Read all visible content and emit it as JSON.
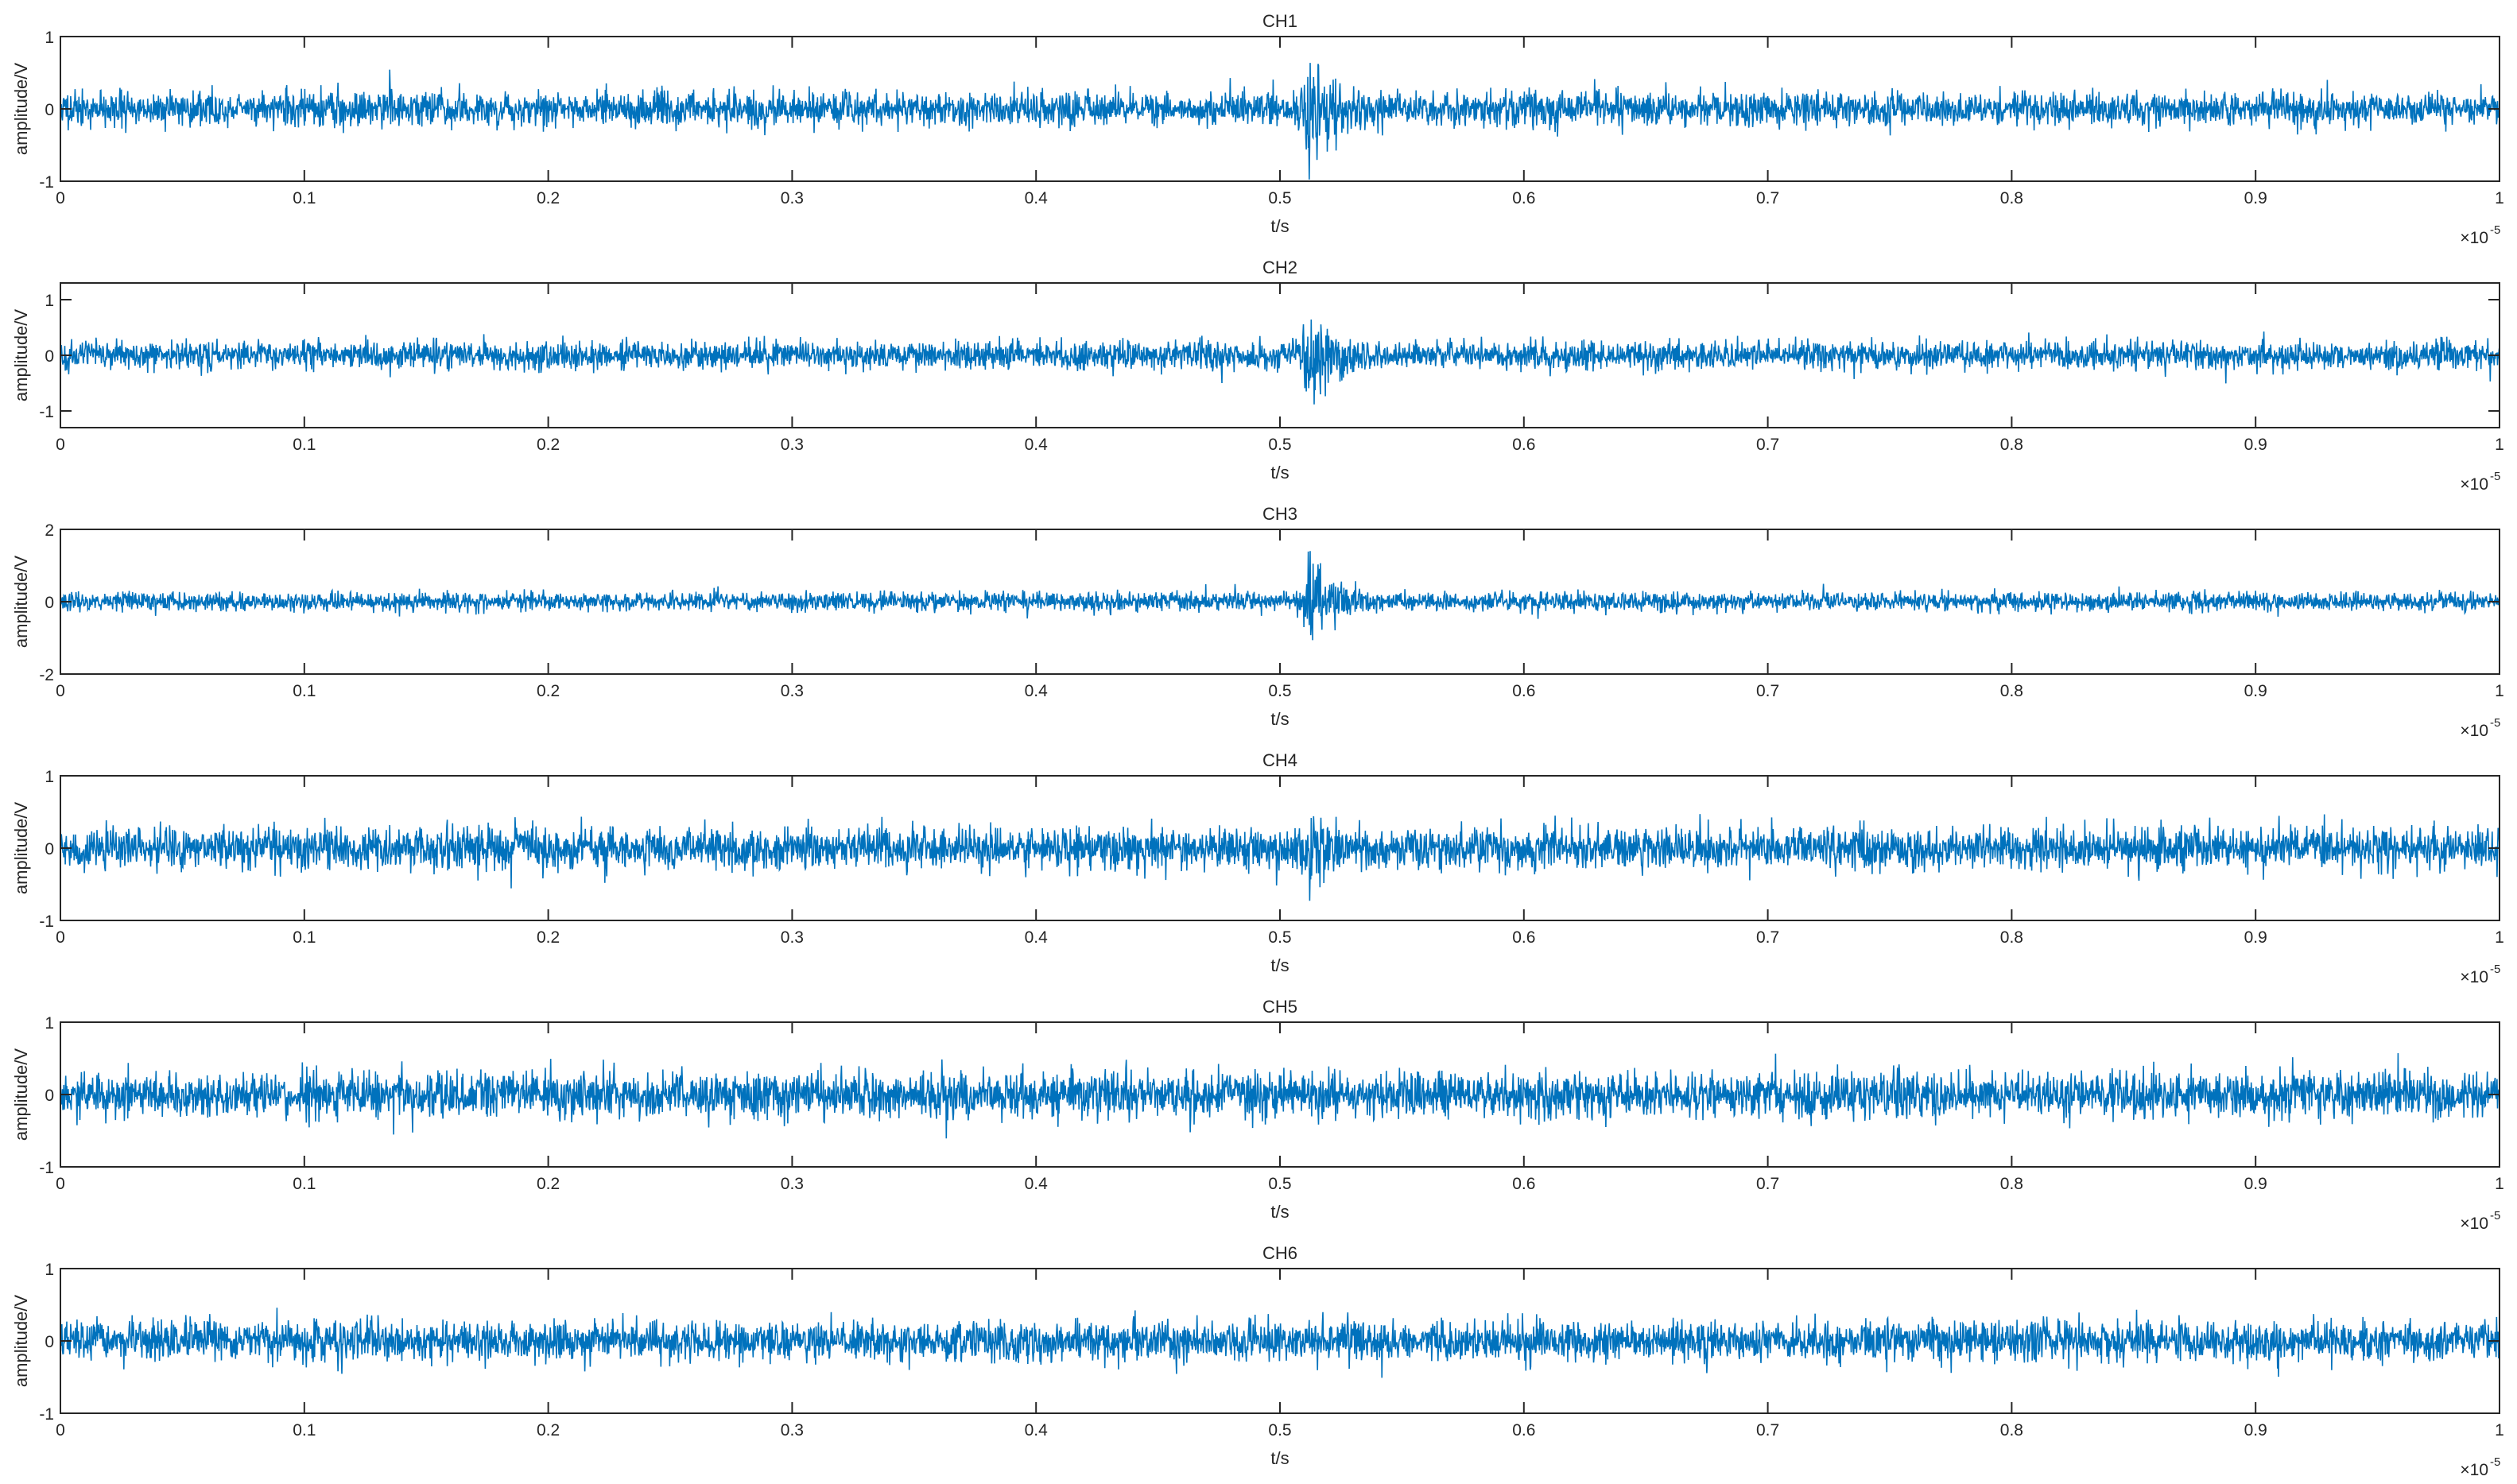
{
  "figure": {
    "line_color": "#0072BD",
    "axis_color": "#262626",
    "background": "#ffffff"
  },
  "chart_data": [
    {
      "type": "line",
      "title": "CH1",
      "xlabel": "t/s",
      "ylabel": "amplitude/V",
      "xlim": [
        0,
        1
      ],
      "ylim": [
        -1,
        1
      ],
      "x_exponent_label": "×10",
      "x_exponent": "-5",
      "xticks": [
        "0",
        "0.1",
        "0.2",
        "0.3",
        "0.4",
        "0.5",
        "0.6",
        "0.7",
        "0.8",
        "0.9",
        "1"
      ],
      "yticks": [
        "-1",
        "0",
        "1"
      ],
      "grid": false,
      "signal": {
        "noise_amplitude": 0.28,
        "peak_amplitude": 1.1,
        "burst_center": 0.512,
        "burst_amplitude": 0.7,
        "seed": 11
      }
    },
    {
      "type": "line",
      "title": "CH2",
      "xlabel": "t/s",
      "ylabel": "amplitude/V",
      "xlim": [
        0,
        1
      ],
      "ylim": [
        -1.3,
        1.3
      ],
      "x_exponent_label": "×10",
      "x_exponent": "-5",
      "xticks": [
        "0",
        "0.1",
        "0.2",
        "0.3",
        "0.4",
        "0.5",
        "0.6",
        "0.7",
        "0.8",
        "0.9",
        "1"
      ],
      "yticks": [
        "-1",
        "0",
        "1"
      ],
      "grid": false,
      "signal": {
        "noise_amplitude": 0.3,
        "peak_amplitude": 1.3,
        "burst_center": 0.512,
        "burst_amplitude": 0.95,
        "seed": 23
      }
    },
    {
      "type": "line",
      "title": "CH3",
      "xlabel": "t/s",
      "ylabel": "amplitude/V",
      "xlim": [
        0,
        1
      ],
      "ylim": [
        -2,
        2
      ],
      "x_exponent_label": "×10",
      "x_exponent": "-5",
      "xticks": [
        "0",
        "0.1",
        "0.2",
        "0.3",
        "0.4",
        "0.5",
        "0.6",
        "0.7",
        "0.8",
        "0.9",
        "1"
      ],
      "yticks": [
        "-2",
        "0",
        "2"
      ],
      "grid": false,
      "signal": {
        "noise_amplitude": 0.3,
        "peak_amplitude": 1.4,
        "burst_center": 0.512,
        "burst_amplitude": 1.2,
        "seed": 37
      }
    },
    {
      "type": "line",
      "title": "CH4",
      "xlabel": "t/s",
      "ylabel": "amplitude/V",
      "xlim": [
        0,
        1
      ],
      "ylim": [
        -1,
        1
      ],
      "x_exponent_label": "×10",
      "x_exponent": "-5",
      "xticks": [
        "0",
        "0.1",
        "0.2",
        "0.3",
        "0.4",
        "0.5",
        "0.6",
        "0.7",
        "0.8",
        "0.9",
        "1"
      ],
      "yticks": [
        "-1",
        "0",
        "1"
      ],
      "grid": false,
      "signal": {
        "noise_amplitude": 0.35,
        "peak_amplitude": 0.85,
        "burst_center": 0.512,
        "burst_amplitude": 0.55,
        "seed": 41
      }
    },
    {
      "type": "line",
      "title": "CH5",
      "xlabel": "t/s",
      "ylabel": "amplitude/V",
      "xlim": [
        0,
        1
      ],
      "ylim": [
        -1,
        1
      ],
      "x_exponent_label": "×10",
      "x_exponent": "-5",
      "xticks": [
        "0",
        "0.1",
        "0.2",
        "0.3",
        "0.4",
        "0.5",
        "0.6",
        "0.7",
        "0.8",
        "0.9",
        "1"
      ],
      "yticks": [
        "-1",
        "0",
        "1"
      ],
      "grid": false,
      "signal": {
        "noise_amplitude": 0.38,
        "peak_amplitude": 0.8,
        "burst_center": 0.512,
        "burst_amplitude": 0.15,
        "seed": 53
      }
    },
    {
      "type": "line",
      "title": "CH6",
      "xlabel": "t/s",
      "ylabel": "amplitude/V",
      "xlim": [
        0,
        1
      ],
      "ylim": [
        -1,
        1
      ],
      "x_exponent_label": "×10",
      "x_exponent": "-5",
      "xticks": [
        "0",
        "0.1",
        "0.2",
        "0.3",
        "0.4",
        "0.5",
        "0.6",
        "0.7",
        "0.8",
        "0.9",
        "1"
      ],
      "yticks": [
        "-1",
        "0",
        "1"
      ],
      "grid": false,
      "signal": {
        "noise_amplitude": 0.32,
        "peak_amplitude": 0.8,
        "burst_center": 0.512,
        "burst_amplitude": 0.0,
        "seed": 67
      }
    }
  ]
}
